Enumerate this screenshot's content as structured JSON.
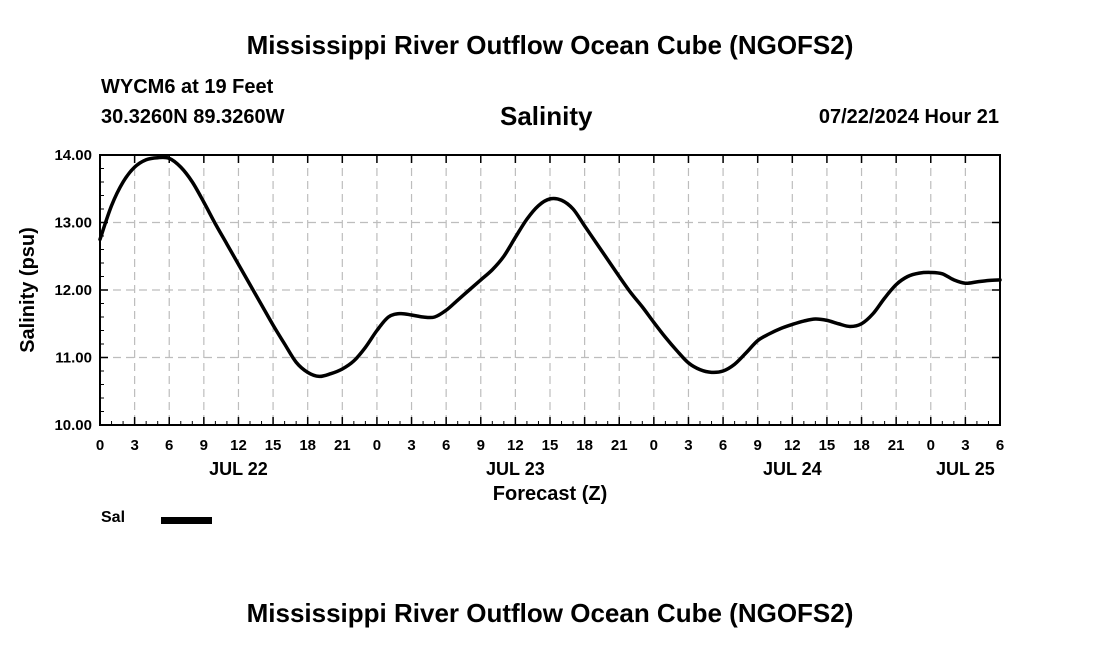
{
  "header": {
    "title": "Mississippi River Outflow Ocean Cube (NGOFS2)",
    "station": "WYCM6 at 19 Feet",
    "coords": "30.3260N  89.3260W",
    "datetime": "07/22/2024 Hour 21"
  },
  "footer": {
    "title": "Mississippi River Outflow Ocean Cube (NGOFS2)"
  },
  "legend": {
    "series_label": "Sal",
    "color": "#000000"
  },
  "chart_data": {
    "type": "line",
    "title": "Salinity",
    "xlabel": "Forecast (Z)",
    "ylabel": "Salinity (psu)",
    "ylim": [
      10.0,
      14.0
    ],
    "xlim_hours": [
      0,
      78
    ],
    "y_ticks": [
      "10.00",
      "11.00",
      "12.00",
      "13.00",
      "14.00"
    ],
    "y_tick_values": [
      10,
      11,
      12,
      13,
      14
    ],
    "x_tick_hours": [
      0,
      3,
      6,
      9,
      12,
      15,
      18,
      21,
      24,
      27,
      30,
      33,
      36,
      39,
      42,
      45,
      48,
      51,
      54,
      57,
      60,
      63,
      66,
      69,
      72,
      75,
      78
    ],
    "x_tick_labels": [
      "0",
      "3",
      "6",
      "9",
      "12",
      "15",
      "18",
      "21",
      "0",
      "3",
      "6",
      "9",
      "12",
      "15",
      "18",
      "21",
      "0",
      "3",
      "6",
      "9",
      "12",
      "15",
      "18",
      "21",
      "0",
      "3",
      "6"
    ],
    "date_labels": [
      {
        "label": "JUL 22",
        "hour": 12
      },
      {
        "label": "JUL 23",
        "hour": 36
      },
      {
        "label": "JUL 24",
        "hour": 60
      },
      {
        "label": "JUL 25",
        "hour": 75
      }
    ],
    "grid": true,
    "series": [
      {
        "name": "Sal",
        "hours": [
          0,
          1,
          2,
          3,
          4,
          5,
          6,
          7,
          8,
          9,
          10,
          11,
          12,
          13,
          14,
          15,
          16,
          17,
          18,
          19,
          20,
          21,
          22,
          23,
          24,
          25,
          26,
          27,
          28,
          29,
          30,
          31,
          32,
          33,
          34,
          35,
          36,
          37,
          38,
          39,
          40,
          41,
          42,
          43,
          44,
          45,
          46,
          47,
          48,
          49,
          50,
          51,
          52,
          53,
          54,
          55,
          56,
          57,
          58,
          59,
          60,
          61,
          62,
          63,
          64,
          65,
          66,
          67,
          68,
          69,
          70,
          71,
          72,
          73,
          74,
          75,
          76,
          77,
          78
        ],
        "values": [
          12.75,
          13.25,
          13.6,
          13.82,
          13.93,
          13.96,
          13.95,
          13.82,
          13.6,
          13.3,
          12.98,
          12.68,
          12.38,
          12.08,
          11.78,
          11.48,
          11.2,
          10.93,
          10.78,
          10.72,
          10.76,
          10.83,
          10.95,
          11.15,
          11.4,
          11.6,
          11.65,
          11.63,
          11.6,
          11.6,
          11.7,
          11.85,
          12.0,
          12.15,
          12.3,
          12.5,
          12.78,
          13.05,
          13.25,
          13.35,
          13.33,
          13.2,
          12.95,
          12.7,
          12.45,
          12.2,
          11.96,
          11.75,
          11.52,
          11.3,
          11.1,
          10.92,
          10.82,
          10.78,
          10.8,
          10.9,
          11.07,
          11.25,
          11.35,
          11.43,
          11.49,
          11.54,
          11.57,
          11.55,
          11.5,
          11.46,
          11.5,
          11.65,
          11.88,
          12.08,
          12.2,
          12.25,
          12.26,
          12.24,
          12.15,
          12.1,
          12.12,
          12.14,
          12.15
        ]
      }
    ]
  }
}
